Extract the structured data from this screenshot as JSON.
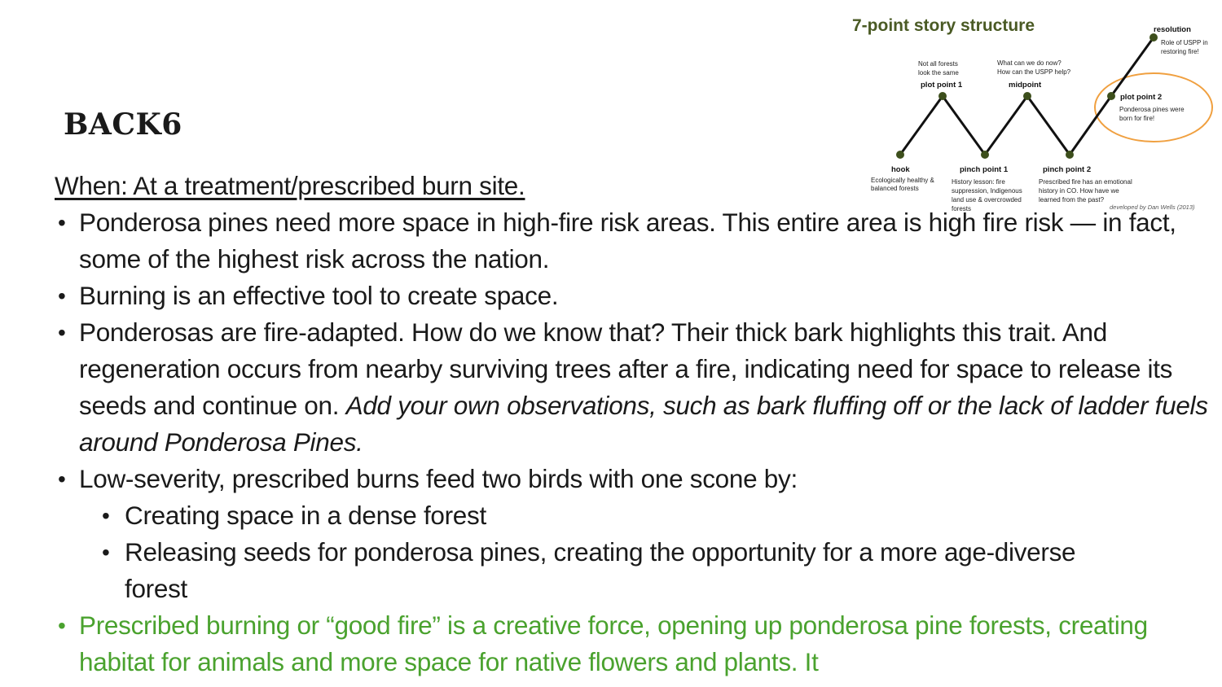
{
  "slide": {
    "title": "BACK6",
    "when": "When: At a treatment/prescribed burn site.",
    "bullets": [
      "Ponderosa pines need more space in high-fire risk areas. This entire area is high fire risk — in fact, some of the highest risk across the nation.",
      "Burning is an effective tool to create space.",
      {
        "text": "Ponderosas are fire-adapted. How do we know that? Their thick bark highlights this trait. And regeneration occurs from nearby surviving trees after a fire, indicating need for space to release its seeds and continue on.",
        "italic": "Add your own observations, such as bark fluffing off or the lack of ladder fuels around Ponderosa Pines."
      },
      "Low-severity, prescribed burns feed two birds with one scone by:"
    ],
    "sub_bullets": [
      "Creating space in a dense forest",
      "Releasing seeds for ponderosa pines, creating the opportunity for a more age-diverse forest"
    ],
    "green_bullet": "Prescribed burning or “good fire” is a creative force, opening up ponderosa pine forests, creating habitat for animals and more space for native flowers and plants. It",
    "colors": {
      "green_text": "#4aa22e",
      "diagram_line": "#111111",
      "diagram_point": "#3d4f1c",
      "highlight_circle": "#f0a040",
      "diagram_title": "#4a5a24"
    }
  },
  "diagram": {
    "title": "7-point story structure",
    "credit": "developed by Dan Wells (2013)",
    "points": {
      "hook": {
        "label": "hook",
        "note": [
          "Ecologically healthy &",
          "balanced forests"
        ]
      },
      "plot1": {
        "label": "plot point 1",
        "note": [
          "Not all forests",
          "look the same"
        ]
      },
      "pinch1": {
        "label": "pinch point 1",
        "note": [
          "History lesson: fire",
          "suppression, Indigenous",
          "land use & overcrowded",
          "forests"
        ]
      },
      "midpoint": {
        "label": "midpoint",
        "note": [
          "What can we do now?",
          "How can the USPP help?"
        ]
      },
      "pinch2": {
        "label": "pinch point 2",
        "note": [
          "Prescribed fire has an emotional",
          "history in CO. How have we",
          "learned from the past?"
        ]
      },
      "plot2": {
        "label": "plot point 2",
        "note": [
          "Ponderosa pines were",
          "born for fire!"
        ]
      },
      "resolution": {
        "label": "resolution",
        "note": [
          "Role of USPP in",
          "restoring fire!"
        ]
      }
    }
  }
}
